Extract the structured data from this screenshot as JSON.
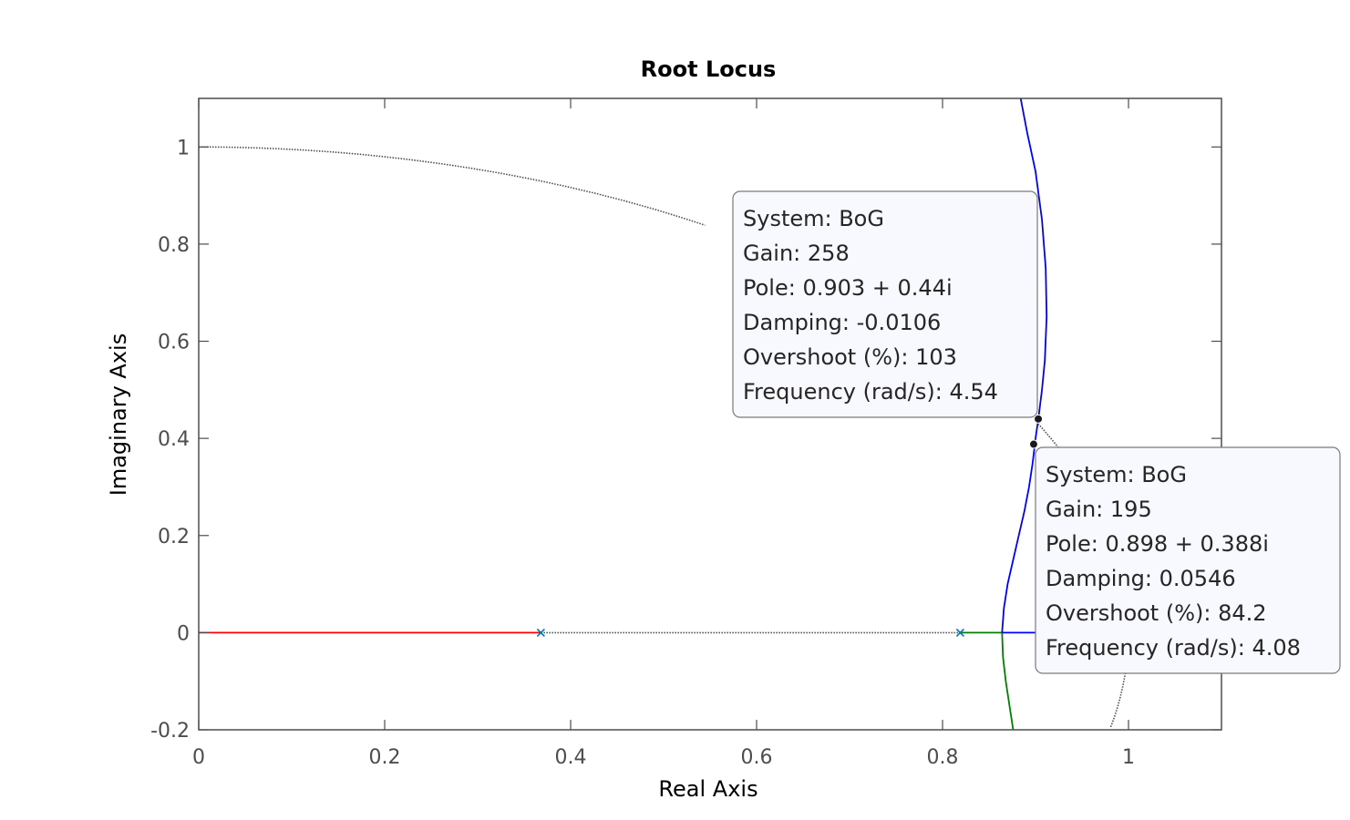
{
  "chart_data": {
    "type": "line",
    "title": "Root Locus",
    "xlabel": "Real Axis",
    "ylabel": "Imaginary Axis",
    "xlim": [
      0,
      1.1
    ],
    "ylim": [
      -0.2,
      1.1
    ],
    "xticks": [
      0,
      0.2,
      0.4,
      0.6,
      0.8,
      1
    ],
    "xtick_labels": [
      "0",
      "0.2",
      "0.4",
      "0.6",
      "0.8",
      "1"
    ],
    "yticks": [
      -0.2,
      0,
      0.2,
      0.4,
      0.6,
      0.8,
      1
    ],
    "ytick_labels": [
      "-0.2",
      "0",
      "0.2",
      "0.4",
      "0.6",
      "0.8",
      "1"
    ],
    "grid": false,
    "legend": "none",
    "colors": {
      "red_branch": "#ff0000",
      "green_branch": "#008000",
      "blue_branch": "#0000ff",
      "unit_circle": "#4d4d4d",
      "pole_marker": "#0072bd"
    },
    "poles": [
      {
        "x": 0.368,
        "y": 0
      },
      {
        "x": 0.819,
        "y": 0
      }
    ],
    "series": [
      {
        "color": "#ff0000",
        "style": "solid",
        "points": [
          [
            0,
            0
          ],
          [
            0.368,
            0
          ]
        ]
      },
      {
        "color": "#008000",
        "style": "solid",
        "points": [
          [
            0.819,
            0
          ],
          [
            0.864,
            0
          ]
        ]
      },
      {
        "color": "#008000",
        "style": "solid",
        "points": [
          [
            0.864,
            0
          ],
          [
            0.865,
            -0.05
          ],
          [
            0.868,
            -0.1
          ],
          [
            0.872,
            -0.15
          ],
          [
            0.876,
            -0.2
          ]
        ]
      },
      {
        "color": "#0000ff",
        "style": "solid",
        "points": [
          [
            0.864,
            0
          ],
          [
            0.9,
            0
          ]
        ]
      },
      {
        "color": "#0000ff",
        "style": "solid",
        "points": [
          [
            0.864,
            0
          ],
          [
            0.866,
            0.05
          ],
          [
            0.87,
            0.1
          ],
          [
            0.876,
            0.15
          ],
          [
            0.882,
            0.2
          ],
          [
            0.888,
            0.25
          ],
          [
            0.893,
            0.3
          ],
          [
            0.897,
            0.35
          ],
          [
            0.9,
            0.4
          ],
          [
            0.903,
            0.44
          ],
          [
            0.907,
            0.5
          ],
          [
            0.91,
            0.56
          ],
          [
            0.912,
            0.65
          ],
          [
            0.911,
            0.75
          ],
          [
            0.907,
            0.85
          ],
          [
            0.9,
            0.95
          ],
          [
            0.891,
            1.03
          ],
          [
            0.884,
            1.1
          ]
        ]
      },
      {
        "color": "#4d4d4d",
        "style": "dotted",
        "points": [
          [
            0.368,
            0
          ],
          [
            0.819,
            0
          ]
        ]
      },
      {
        "color": "#4d4d4d",
        "style": "dotted",
        "curve": "unit_circle",
        "from_deg": 90,
        "to_deg": 57
      },
      {
        "color": "#4d4d4d",
        "style": "dotted",
        "curve": "unit_circle",
        "from_deg": 26,
        "to_deg": -11.3
      }
    ],
    "datatips": [
      {
        "marker": {
          "x": 0.903,
          "y": 0.44
        },
        "lines": [
          "System: BoG",
          "Gain:  258",
          "Pole: 0.903 + 0.44i",
          "Damping: -0.0106",
          "Overshoot (%): 103",
          "Frequency (rad/s): 4.54"
        ]
      },
      {
        "marker": {
          "x": 0.898,
          "y": 0.388
        },
        "lines": [
          "System: BoG",
          "Gain: 195",
          "Pole: 0.898 + 0.388i",
          "Damping: 0.0546",
          "Overshoot (%): 84.2",
          "Frequency (rad/s): 4.08"
        ]
      }
    ]
  }
}
